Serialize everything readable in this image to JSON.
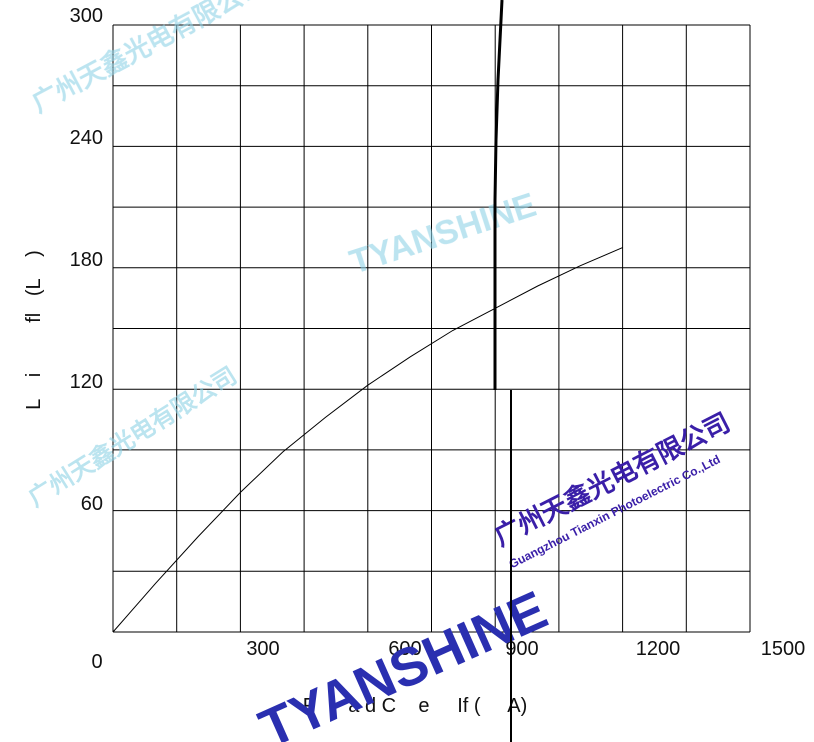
{
  "chart_data": {
    "type": "line",
    "xlabel": "F      a d C    e     If (     A)",
    "ylabel": "L    i         fl   (L    )",
    "xlim": [
      0,
      1500
    ],
    "ylim": [
      0,
      300
    ],
    "x_ticks": [
      "0",
      "300",
      "600",
      "900",
      "1200",
      "1500"
    ],
    "y_ticks": [
      "60",
      "120",
      "180",
      "240",
      "300"
    ],
    "grid": true,
    "legend": "none",
    "series": [
      {
        "x": [
          0,
          100,
          200,
          300,
          400,
          500,
          600,
          700,
          800,
          900,
          1000,
          1100,
          1200
        ],
        "y": [
          0,
          24,
          47,
          69,
          89,
          106,
          122,
          136,
          149,
          160,
          171,
          181,
          190
        ],
        "color": "#000000"
      }
    ]
  },
  "watermarks": {
    "brand": "TYANSHINE",
    "company_cn": "广州天鑫光电有限公司",
    "company_en": "Guangzhou Tianxin Photoelectric Co.,Ltd",
    "brand_color": "#2a2fb0",
    "cn_color": "#3a1fa8",
    "faint_color": "#8fd3e6"
  }
}
